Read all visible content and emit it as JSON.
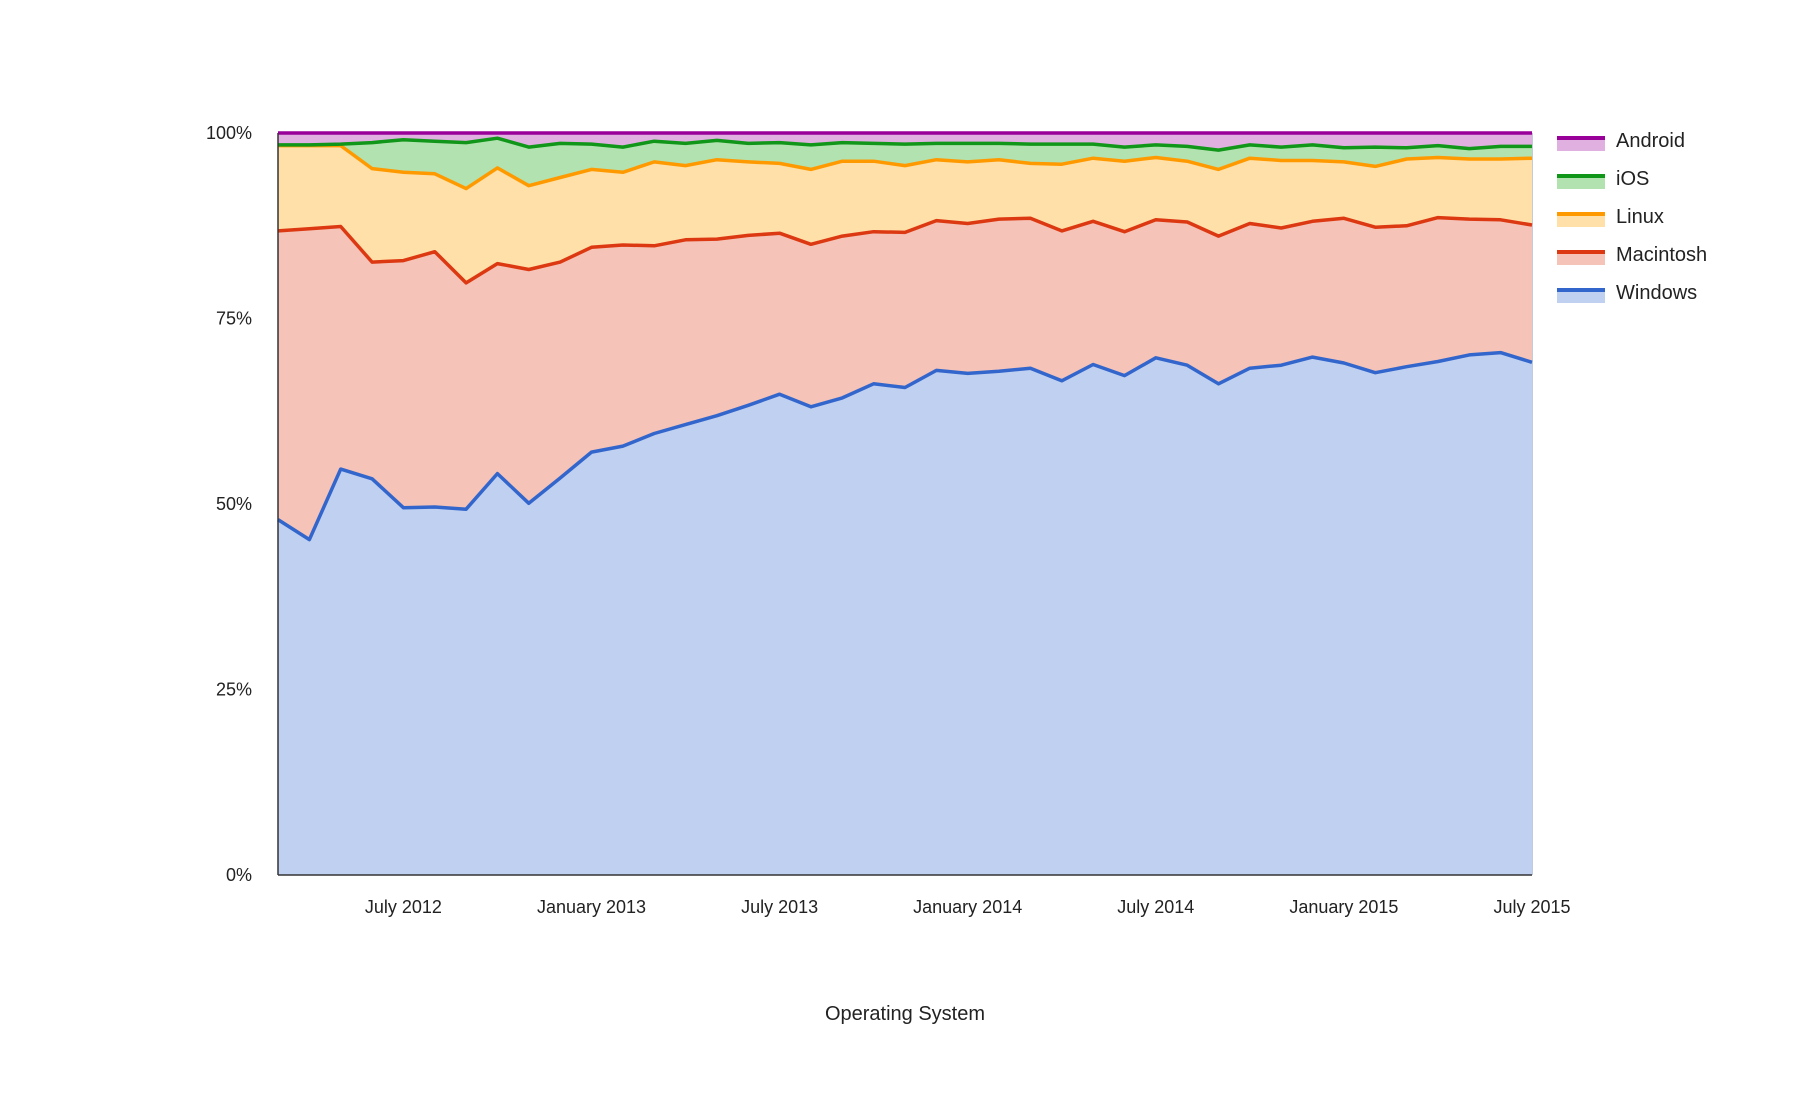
{
  "chart_data": {
    "type": "area",
    "stacked": true,
    "xlabel": "Operating System",
    "ylabel": "",
    "ylim": [
      0,
      100
    ],
    "y_ticks": [
      {
        "value": 0,
        "label": "0%"
      },
      {
        "value": 25,
        "label": "25%"
      },
      {
        "value": 50,
        "label": "50%"
      },
      {
        "value": 75,
        "label": "75%"
      },
      {
        "value": 100,
        "label": "100%"
      }
    ],
    "x_start": "2012-03",
    "x_end": "2015-07",
    "x_ticks": [
      {
        "value": "2012-07",
        "label": "July 2012"
      },
      {
        "value": "2013-01",
        "label": "January 2013"
      },
      {
        "value": "2013-07",
        "label": "July 2013"
      },
      {
        "value": "2014-01",
        "label": "January 2014"
      },
      {
        "value": "2014-07",
        "label": "July 2014"
      },
      {
        "value": "2015-01",
        "label": "January 2015"
      },
      {
        "value": "2015-07",
        "label": "July 2015"
      }
    ],
    "grid": true,
    "legend_position": "right",
    "x": [
      "2012-03",
      "2012-04",
      "2012-05",
      "2012-06",
      "2012-07",
      "2012-08",
      "2012-09",
      "2012-10",
      "2012-11",
      "2012-12",
      "2013-01",
      "2013-02",
      "2013-03",
      "2013-04",
      "2013-05",
      "2013-06",
      "2013-07",
      "2013-08",
      "2013-09",
      "2013-10",
      "2013-11",
      "2013-12",
      "2014-01",
      "2014-02",
      "2014-03",
      "2014-04",
      "2014-05",
      "2014-06",
      "2014-07",
      "2014-08",
      "2014-09",
      "2014-10",
      "2014-11",
      "2014-12",
      "2015-01",
      "2015-02",
      "2015-03",
      "2015-04",
      "2015-05",
      "2015-06",
      "2015-07"
    ],
    "series": [
      {
        "name": "Windows",
        "line_color": "#3366cc",
        "fill_color": "#c0d0f0",
        "values": [
          47.9,
          45.2,
          54.7,
          53.4,
          49.5,
          49.6,
          49.3,
          54.1,
          50.1,
          53.5,
          57.0,
          57.8,
          59.5,
          60.7,
          61.9,
          63.3,
          64.8,
          63.1,
          64.3,
          66.2,
          65.7,
          68.0,
          67.6,
          67.9,
          68.3,
          66.6,
          68.8,
          67.3,
          69.7,
          68.7,
          66.2,
          68.3,
          68.7,
          69.8,
          69.0,
          67.7,
          68.5,
          69.2,
          70.1,
          70.4,
          69.1
        ]
      },
      {
        "name": "Macintosh",
        "line_color": "#dc3912",
        "fill_color": "#f5c3b7",
        "values": [
          86.8,
          87.1,
          87.4,
          82.6,
          82.8,
          84.0,
          79.8,
          82.4,
          81.6,
          82.6,
          84.6,
          84.9,
          84.8,
          85.6,
          85.7,
          86.2,
          86.5,
          85.0,
          86.1,
          86.7,
          86.6,
          88.2,
          87.8,
          88.4,
          88.5,
          86.8,
          88.1,
          86.7,
          88.3,
          88.0,
          86.1,
          87.8,
          87.2,
          88.1,
          88.5,
          87.3,
          87.5,
          88.6,
          88.4,
          88.3,
          87.6
        ]
      },
      {
        "name": "Linux",
        "line_color": "#ff9900",
        "fill_color": "#ffe0a8",
        "values": [
          98.3,
          98.3,
          98.3,
          95.2,
          94.7,
          94.5,
          92.5,
          95.3,
          92.9,
          94.0,
          95.1,
          94.7,
          96.1,
          95.6,
          96.4,
          96.1,
          95.9,
          95.1,
          96.2,
          96.2,
          95.6,
          96.4,
          96.1,
          96.4,
          95.9,
          95.8,
          96.6,
          96.2,
          96.7,
          96.2,
          95.1,
          96.6,
          96.3,
          96.3,
          96.1,
          95.5,
          96.5,
          96.7,
          96.5,
          96.5,
          96.6
        ]
      },
      {
        "name": "iOS",
        "line_color": "#109618",
        "fill_color": "#b2e2b0",
        "values": [
          98.4,
          98.4,
          98.5,
          98.7,
          99.1,
          98.9,
          98.7,
          99.3,
          98.1,
          98.6,
          98.5,
          98.1,
          98.9,
          98.6,
          99.0,
          98.6,
          98.7,
          98.4,
          98.7,
          98.6,
          98.5,
          98.6,
          98.6,
          98.6,
          98.5,
          98.5,
          98.5,
          98.1,
          98.4,
          98.2,
          97.7,
          98.4,
          98.1,
          98.4,
          98.0,
          98.1,
          98.0,
          98.3,
          97.9,
          98.2,
          98.2
        ]
      },
      {
        "name": "Android",
        "line_color": "#990099",
        "fill_color": "#e0b0e0",
        "values": [
          100,
          100,
          100,
          100,
          100,
          100,
          100,
          100,
          100,
          100,
          100,
          100,
          100,
          100,
          100,
          100,
          100,
          100,
          100,
          100,
          100,
          100,
          100,
          100,
          100,
          100,
          100,
          100,
          100,
          100,
          100,
          100,
          100,
          100,
          100,
          100,
          100,
          100,
          100,
          100,
          100
        ]
      }
    ],
    "legend_order": [
      "Android",
      "iOS",
      "Linux",
      "Macintosh",
      "Windows"
    ]
  }
}
